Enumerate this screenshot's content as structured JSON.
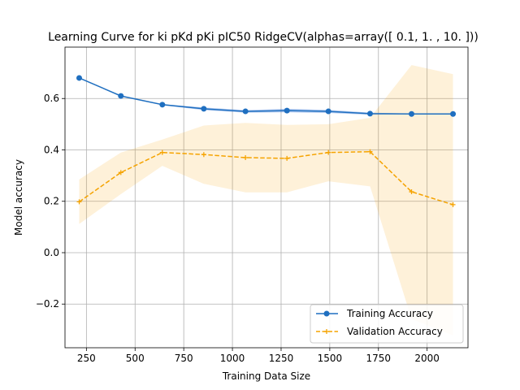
{
  "chart_data": {
    "type": "line",
    "title": "Learning Curve for ki pKd pKi pIC50 RidgeCV(alphas=array([ 0.1,  1. , 10. ]))",
    "xlabel": "Training Data Size",
    "ylabel": "Model accuracy",
    "xlim": [
      140,
      2210
    ],
    "ylim": [
      -0.37,
      0.8
    ],
    "xticks": [
      250,
      500,
      750,
      1000,
      1250,
      1500,
      1750,
      2000
    ],
    "yticks": [
      -0.2,
      0.0,
      0.2,
      0.4,
      0.6
    ],
    "ytick_labels": [
      "−0.2",
      "0.0",
      "0.2",
      "0.4",
      "0.6"
    ],
    "grid": true,
    "legend_position": "lower-right",
    "x": [
      213,
      427,
      640,
      853,
      1067,
      1280,
      1493,
      1707,
      1920,
      2133
    ],
    "series": [
      {
        "name": "Training Accuracy",
        "color": "#1f6fc0",
        "style": "solid",
        "marker": "circle",
        "values": [
          0.68,
          0.61,
          0.576,
          0.56,
          0.55,
          0.553,
          0.55,
          0.541,
          0.54,
          0.54
        ],
        "band_upper": [
          0.68,
          0.611,
          0.578,
          0.565,
          0.555,
          0.56,
          0.556,
          0.545,
          0.541,
          0.541
        ],
        "band_lower": [
          0.68,
          0.609,
          0.574,
          0.555,
          0.545,
          0.546,
          0.544,
          0.537,
          0.539,
          0.539
        ],
        "band_color": "#2b6cd8"
      },
      {
        "name": "Validation Accuracy",
        "color": "#f5a300",
        "style": "dashed",
        "marker": "plus",
        "values": [
          0.198,
          0.312,
          0.39,
          0.382,
          0.37,
          0.367,
          0.39,
          0.393,
          0.237,
          0.187
        ],
        "band_upper": [
          0.285,
          0.39,
          0.44,
          0.495,
          0.505,
          0.497,
          0.5,
          0.525,
          0.73,
          0.695
        ],
        "band_lower": [
          0.112,
          0.228,
          0.338,
          0.268,
          0.235,
          0.235,
          0.278,
          0.258,
          -0.258,
          -0.322
        ],
        "band_color": "#f5a300"
      }
    ]
  }
}
